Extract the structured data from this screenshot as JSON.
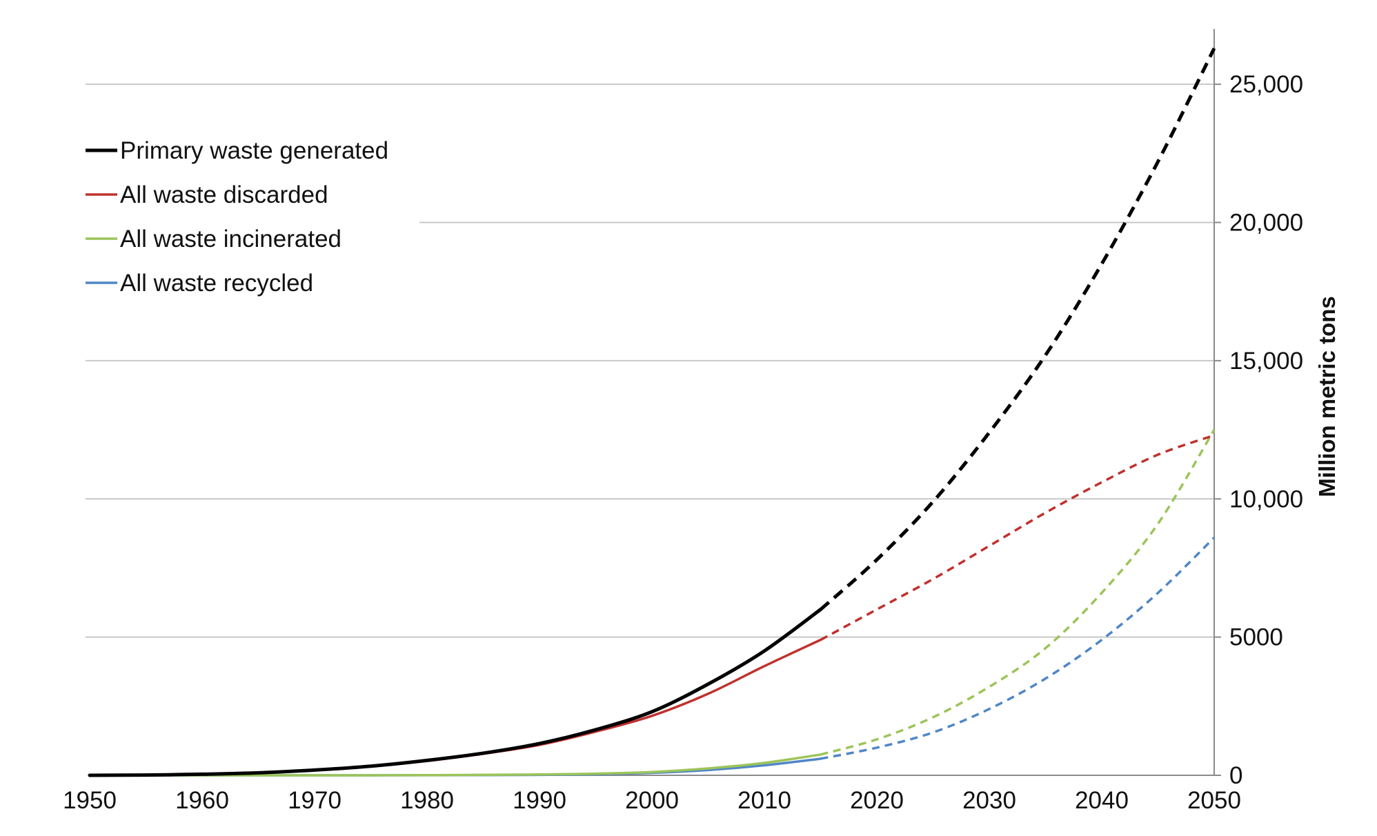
{
  "chart_data": {
    "type": "line",
    "title": "",
    "xlabel": "",
    "ylabel": "Million metric tons",
    "xlim": [
      1950,
      2050
    ],
    "ylim": [
      0,
      27000
    ],
    "x_ticks": [
      1950,
      1960,
      1970,
      1980,
      1990,
      2000,
      2010,
      2020,
      2030,
      2040,
      2050
    ],
    "x_tick_labels": [
      "1950",
      "1960",
      "1970",
      "1980",
      "1990",
      "2000",
      "2010",
      "2020",
      "2030",
      "2040",
      "2050"
    ],
    "y_ticks": [
      0,
      5000,
      10000,
      15000,
      20000,
      25000
    ],
    "y_tick_labels": [
      "0",
      "5000",
      "10,000",
      "15,000",
      "20,000",
      "25,000"
    ],
    "y_axis_position": "right",
    "grid": true,
    "grid_color": "#c8c8c8",
    "legend_position": "top-left",
    "historical_end_year": 2015,
    "projection_style": "dashed",
    "series": [
      {
        "name": "Primary waste generated",
        "color": "#000000",
        "x": [
          1950,
          1955,
          1960,
          1965,
          1970,
          1975,
          1980,
          1985,
          1990,
          1995,
          2000,
          2005,
          2010,
          2015,
          2020,
          2025,
          2030,
          2035,
          2040,
          2045,
          2050
        ],
        "y": [
          0,
          10,
          40,
          90,
          190,
          330,
          540,
          800,
          1150,
          1650,
          2300,
          3300,
          4500,
          6000,
          7800,
          9900,
          12400,
          15200,
          18500,
          22200,
          26300
        ]
      },
      {
        "name": "All waste discarded",
        "color": "#c0302c",
        "x": [
          1950,
          1955,
          1960,
          1965,
          1970,
          1975,
          1980,
          1985,
          1990,
          1995,
          2000,
          2005,
          2010,
          2015,
          2020,
          2025,
          2030,
          2035,
          2040,
          2045,
          2050
        ],
        "y": [
          0,
          10,
          40,
          90,
          180,
          320,
          520,
          780,
          1100,
          1580,
          2150,
          2950,
          3950,
          4900,
          6000,
          7100,
          8300,
          9500,
          10600,
          11600,
          12300
        ]
      },
      {
        "name": "All waste incinerated",
        "color": "#9cc45a",
        "x": [
          1950,
          1960,
          1970,
          1980,
          1990,
          1995,
          2000,
          2005,
          2010,
          2015,
          2020,
          2025,
          2030,
          2035,
          2040,
          2045,
          2050
        ],
        "y": [
          0,
          0,
          0,
          5,
          30,
          60,
          120,
          250,
          450,
          750,
          1300,
          2100,
          3200,
          4600,
          6600,
          9100,
          12500
        ]
      },
      {
        "name": "All waste recycled",
        "color": "#4f86c6",
        "x": [
          1950,
          1960,
          1970,
          1980,
          1990,
          1995,
          2000,
          2005,
          2010,
          2015,
          2020,
          2025,
          2030,
          2035,
          2040,
          2045,
          2050
        ],
        "y": [
          0,
          0,
          0,
          3,
          15,
          40,
          90,
          190,
          360,
          600,
          1000,
          1550,
          2400,
          3500,
          4900,
          6600,
          8600
        ]
      }
    ]
  }
}
